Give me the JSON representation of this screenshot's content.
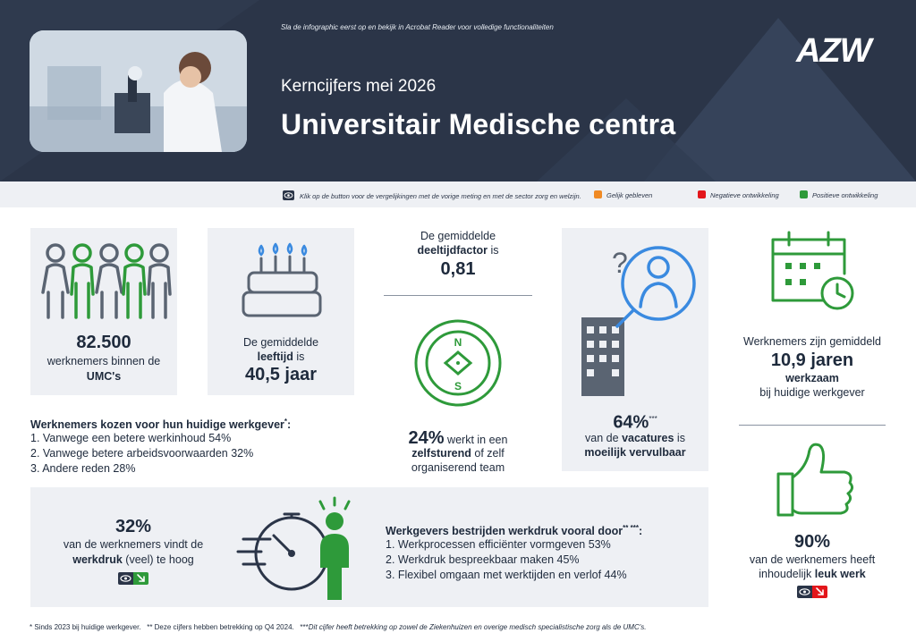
{
  "header": {
    "hint": "Sla de infographic eerst op en bekijk in Acrobat Reader voor volledige functionaliteiten",
    "subtitle": "Kerncijfers mei 2026",
    "title": "Universitair Medische centra",
    "logo": "AZW"
  },
  "legend": {
    "button_hint": "Klik op de button voor de vergelijkingen met de vorige meting en met de sector zorg en welzijn.",
    "items": [
      {
        "label": "Gelijk gebleven",
        "color": "#f08a24"
      },
      {
        "label": "Negatieve ontwikkeling",
        "color": "#e3161b"
      },
      {
        "label": "Positieve ontwikkeling",
        "color": "#2e9a3a"
      }
    ]
  },
  "employees": {
    "value": "82.500",
    "line1": "werknemers binnen de",
    "line2": "UMC's"
  },
  "age": {
    "line1": "De gemiddelde",
    "line2a": "leeftijd",
    "line2b": " is",
    "value": "40,5 jaar"
  },
  "parttime": {
    "line1": "De gemiddelde",
    "line2a": "deeltijdfactor",
    "line2b": " is",
    "value": "0,81"
  },
  "selfsteering": {
    "value": "24%",
    "rest1": " werkt in een",
    "line2a": "zelfsturend",
    "line2b": " of zelf",
    "line3": "organiserend team"
  },
  "vacancies": {
    "value": "64%",
    "sup": "***",
    "line2a": "van de ",
    "line2b": "vacatures",
    "line2c": " is",
    "line3": "moeilijk vervulbaar"
  },
  "tenure": {
    "line1": "Werknemers zijn gemiddeld",
    "value": "10,9 jaren",
    "line3": "werkzaam",
    "line4": "bij huidige werkgever"
  },
  "choice": {
    "heading": "Werknemers kozen voor hun huidige werkgever",
    "sup": "*",
    "colon": ":",
    "items": [
      "1. Vanwege een betere werkinhoud 54%",
      "2. Vanwege betere arbeidsvoorwaarden 32%",
      "3. Andere reden  28%"
    ]
  },
  "workload": {
    "value": "32%",
    "line1": "van de werknemers vindt de",
    "line2a": "werkdruk",
    "line2b": " (veel) te hoog",
    "badge_color": "#2e9a3a"
  },
  "measures": {
    "heading": "Werkgevers bestrijden werkdruk vooral door",
    "sup": "** ***",
    "colon": ":",
    "items": [
      "1. Werkprocessen efficiënter vormgeven 53%",
      "2. Werkdruk bespreekbaar maken 45%",
      "3. Flexibel omgaan met werktijden en verlof 44%"
    ]
  },
  "fun": {
    "value": "90%",
    "line1": "van de werknemers heeft",
    "line2a": "inhoudelijk ",
    "line2b": "leuk werk",
    "badge_color": "#e3161b"
  },
  "footer": {
    "a": "* Sinds 2023 bij huidige werkgever.",
    "b": "** Deze cijfers hebben betrekking op Q4 2024.",
    "c": "***",
    "d": "Dit cijfer heeft betrekking op zowel de Ziekenhuizen en overige medisch specialistische zorg als de UMC's."
  }
}
